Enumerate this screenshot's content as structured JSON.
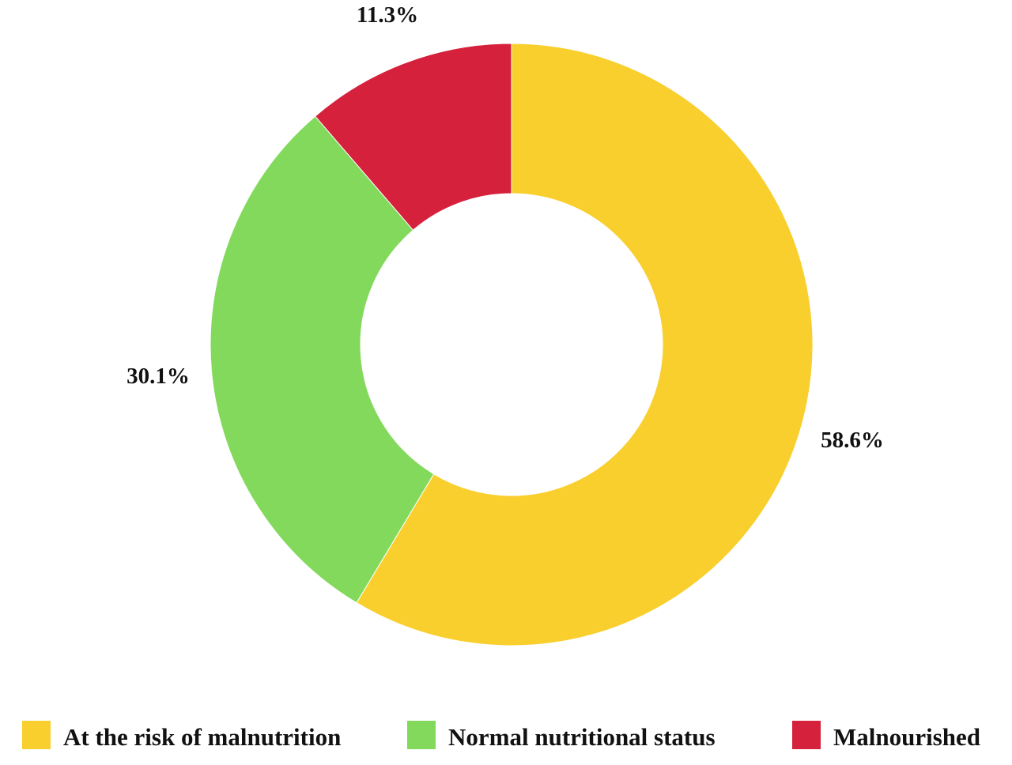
{
  "chart_data": {
    "type": "pie",
    "variant": "donut",
    "start_at": "12 o'clock",
    "direction": "clockwise",
    "legend_position": "bottom",
    "series": [
      {
        "name": "At the risk of malnutrition",
        "value": 58.6,
        "label": "58.6%",
        "color": "#F9CF2E"
      },
      {
        "name": "Normal nutritional status",
        "value": 30.1,
        "label": "30.1%",
        "color": "#82D95C"
      },
      {
        "name": "Malnourished",
        "value": 11.3,
        "label": "11.3%",
        "color": "#D5213B"
      }
    ]
  }
}
